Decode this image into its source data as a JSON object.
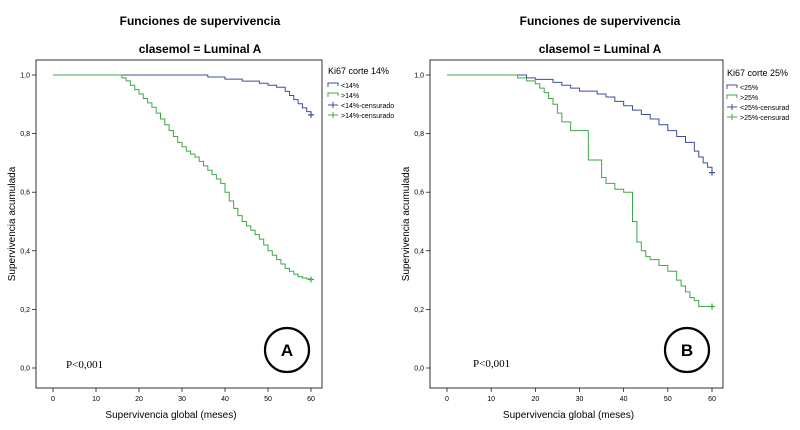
{
  "chart_data": [
    {
      "panel": "A",
      "type": "line",
      "chart_style": "step",
      "title": "Funciones de supervivencia",
      "subtitle": "clasemol = Luminal A",
      "xlabel": "Supervivencia  global (meses)",
      "ylabel": "Supervivencia  acumulada",
      "xlim": [
        0,
        60
      ],
      "ylim": [
        0,
        1
      ],
      "x_ticks": [
        0,
        10,
        20,
        30,
        40,
        50,
        60
      ],
      "x_tick_labels": [
        "0",
        "10",
        "20",
        "30",
        "40",
        "50",
        "60"
      ],
      "y_ticks": [
        0,
        0.2,
        0.4,
        0.6,
        0.8,
        1.0
      ],
      "y_tick_labels": [
        "0,0",
        "0,2",
        "0,4",
        "0,6",
        "0,8",
        "1,0"
      ],
      "legend_title": "Ki67 corte 14%",
      "legend": [
        "<14%",
        ">14%",
        "<14%-censurado",
        ">14%-censurado"
      ],
      "legend_kinds": [
        "line",
        "line",
        "censor",
        "censor"
      ],
      "legend_series": [
        0,
        1,
        0,
        1
      ],
      "annotation": "P<0,001",
      "badge": "A",
      "series": [
        {
          "name": "<14%",
          "color": "#3c4f9e",
          "x": [
            0,
            36,
            40,
            44,
            48,
            50,
            52,
            54,
            55,
            56,
            57,
            58,
            59,
            60
          ],
          "y": [
            1.0,
            0.993,
            0.986,
            0.979,
            0.972,
            0.965,
            0.958,
            0.944,
            0.93,
            0.916,
            0.902,
            0.888,
            0.875,
            0.864
          ],
          "censor_x": [
            60
          ],
          "censor_y": [
            0.864
          ]
        },
        {
          "name": ">14%",
          "color": "#3ea84a",
          "x": [
            0,
            16,
            17,
            18,
            19,
            20,
            21,
            22,
            23,
            24,
            25,
            26,
            27,
            28,
            29,
            30,
            31,
            32,
            33,
            34,
            35,
            36,
            37,
            38,
            39,
            40,
            41,
            42,
            43,
            44,
            45,
            46,
            47,
            48,
            49,
            50,
            51,
            52,
            53,
            54,
            55,
            56,
            57,
            58,
            59,
            60
          ],
          "y": [
            1.0,
            0.99,
            0.98,
            0.965,
            0.95,
            0.935,
            0.92,
            0.905,
            0.89,
            0.87,
            0.85,
            0.83,
            0.81,
            0.79,
            0.77,
            0.755,
            0.74,
            0.73,
            0.72,
            0.705,
            0.69,
            0.675,
            0.66,
            0.645,
            0.63,
            0.6,
            0.57,
            0.545,
            0.52,
            0.5,
            0.485,
            0.47,
            0.455,
            0.44,
            0.42,
            0.4,
            0.385,
            0.37,
            0.355,
            0.34,
            0.33,
            0.32,
            0.312,
            0.307,
            0.304,
            0.302
          ],
          "censor_x": [
            60
          ],
          "censor_y": [
            0.302
          ]
        }
      ]
    },
    {
      "panel": "B",
      "type": "line",
      "chart_style": "step",
      "title": "Funciones de supervivencia",
      "subtitle": "clasemol = Luminal A",
      "xlabel": "Supervivencia  global (meses)",
      "ylabel": "Supervivencia  acumulada",
      "xlim": [
        0,
        60
      ],
      "ylim": [
        0,
        1
      ],
      "x_ticks": [
        0,
        10,
        20,
        30,
        40,
        50,
        60
      ],
      "x_tick_labels": [
        "0",
        "10",
        "20",
        "30",
        "40",
        "50",
        "60"
      ],
      "y_ticks": [
        0,
        0.2,
        0.4,
        0.6,
        0.8,
        1.0
      ],
      "y_tick_labels": [
        "0,0",
        "0,2",
        "0,4",
        "0,6",
        "0,8",
        "1,0"
      ],
      "legend_title": "Ki67 corte 25%",
      "legend": [
        "<25%",
        ">25%",
        "<25%-censurad",
        ">25%-censurad"
      ],
      "legend_kinds": [
        "line",
        "line",
        "censor",
        "censor"
      ],
      "legend_series": [
        0,
        1,
        0,
        1
      ],
      "annotation": "P<0,001",
      "badge": "B",
      "series": [
        {
          "name": "<25%",
          "color": "#3c4f9e",
          "x": [
            0,
            18,
            20,
            24,
            26,
            28,
            30,
            34,
            36,
            38,
            40,
            42,
            44,
            46,
            48,
            50,
            52,
            54,
            56,
            57,
            58,
            59,
            60
          ],
          "y": [
            1.0,
            0.99,
            0.985,
            0.975,
            0.965,
            0.955,
            0.945,
            0.935,
            0.925,
            0.91,
            0.895,
            0.88,
            0.865,
            0.85,
            0.83,
            0.81,
            0.79,
            0.77,
            0.74,
            0.72,
            0.7,
            0.685,
            0.667
          ],
          "censor_x": [
            60
          ],
          "censor_y": [
            0.667
          ]
        },
        {
          "name": ">25%",
          "color": "#3ea84a",
          "x": [
            0,
            16,
            18,
            20,
            21,
            22,
            23,
            24,
            25,
            26,
            28,
            32,
            35,
            36,
            38,
            40,
            42,
            43,
            44,
            45,
            46,
            48,
            50,
            52,
            53,
            54,
            55,
            56,
            57,
            60
          ],
          "y": [
            1.0,
            0.99,
            0.98,
            0.97,
            0.955,
            0.94,
            0.92,
            0.9,
            0.87,
            0.84,
            0.81,
            0.71,
            0.65,
            0.63,
            0.61,
            0.6,
            0.5,
            0.43,
            0.4,
            0.38,
            0.37,
            0.35,
            0.33,
            0.3,
            0.28,
            0.26,
            0.24,
            0.23,
            0.21,
            0.21
          ],
          "censor_x": [
            60
          ],
          "censor_y": [
            0.21
          ]
        }
      ]
    }
  ]
}
